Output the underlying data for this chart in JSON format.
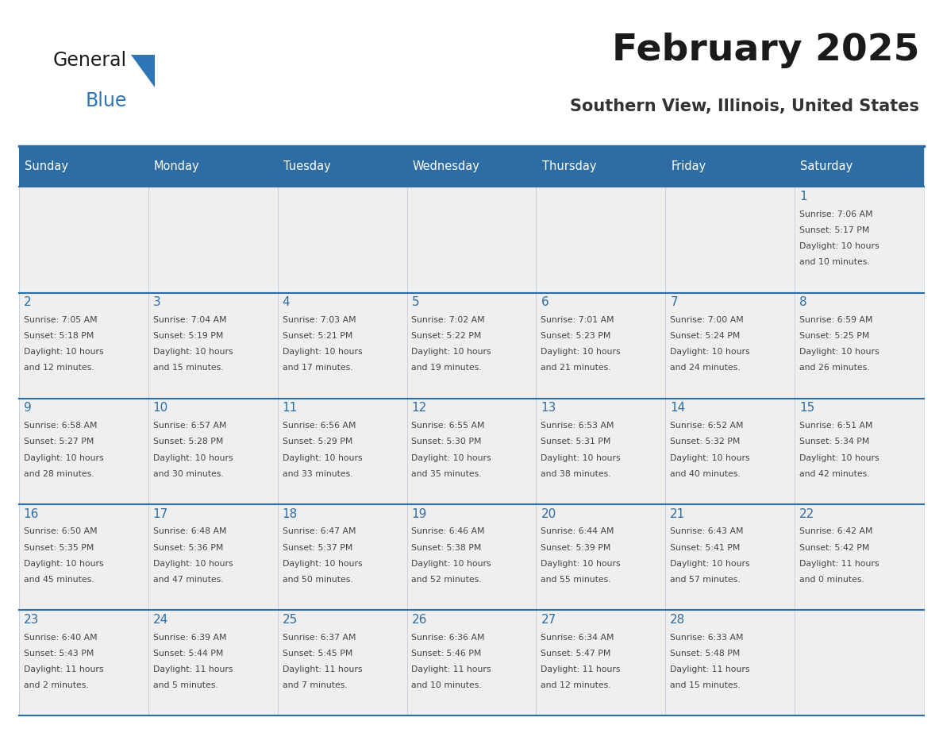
{
  "title": "February 2025",
  "subtitle": "Southern View, Illinois, United States",
  "header_bg": "#2E6DA4",
  "header_text_color": "#FFFFFF",
  "cell_bg": "#EFEFEF",
  "day_number_color": "#2E6DA4",
  "detail_text_color": "#444444",
  "border_color": "#2E6DA4",
  "days_of_week": [
    "Sunday",
    "Monday",
    "Tuesday",
    "Wednesday",
    "Thursday",
    "Friday",
    "Saturday"
  ],
  "weeks": [
    [
      {
        "day": null,
        "sunrise": null,
        "sunset": null,
        "daylight": null
      },
      {
        "day": null,
        "sunrise": null,
        "sunset": null,
        "daylight": null
      },
      {
        "day": null,
        "sunrise": null,
        "sunset": null,
        "daylight": null
      },
      {
        "day": null,
        "sunrise": null,
        "sunset": null,
        "daylight": null
      },
      {
        "day": null,
        "sunrise": null,
        "sunset": null,
        "daylight": null
      },
      {
        "day": null,
        "sunrise": null,
        "sunset": null,
        "daylight": null
      },
      {
        "day": 1,
        "sunrise": "7:06 AM",
        "sunset": "5:17 PM",
        "daylight": "10 hours\nand 10 minutes."
      }
    ],
    [
      {
        "day": 2,
        "sunrise": "7:05 AM",
        "sunset": "5:18 PM",
        "daylight": "10 hours\nand 12 minutes."
      },
      {
        "day": 3,
        "sunrise": "7:04 AM",
        "sunset": "5:19 PM",
        "daylight": "10 hours\nand 15 minutes."
      },
      {
        "day": 4,
        "sunrise": "7:03 AM",
        "sunset": "5:21 PM",
        "daylight": "10 hours\nand 17 minutes."
      },
      {
        "day": 5,
        "sunrise": "7:02 AM",
        "sunset": "5:22 PM",
        "daylight": "10 hours\nand 19 minutes."
      },
      {
        "day": 6,
        "sunrise": "7:01 AM",
        "sunset": "5:23 PM",
        "daylight": "10 hours\nand 21 minutes."
      },
      {
        "day": 7,
        "sunrise": "7:00 AM",
        "sunset": "5:24 PM",
        "daylight": "10 hours\nand 24 minutes."
      },
      {
        "day": 8,
        "sunrise": "6:59 AM",
        "sunset": "5:25 PM",
        "daylight": "10 hours\nand 26 minutes."
      }
    ],
    [
      {
        "day": 9,
        "sunrise": "6:58 AM",
        "sunset": "5:27 PM",
        "daylight": "10 hours\nand 28 minutes."
      },
      {
        "day": 10,
        "sunrise": "6:57 AM",
        "sunset": "5:28 PM",
        "daylight": "10 hours\nand 30 minutes."
      },
      {
        "day": 11,
        "sunrise": "6:56 AM",
        "sunset": "5:29 PM",
        "daylight": "10 hours\nand 33 minutes."
      },
      {
        "day": 12,
        "sunrise": "6:55 AM",
        "sunset": "5:30 PM",
        "daylight": "10 hours\nand 35 minutes."
      },
      {
        "day": 13,
        "sunrise": "6:53 AM",
        "sunset": "5:31 PM",
        "daylight": "10 hours\nand 38 minutes."
      },
      {
        "day": 14,
        "sunrise": "6:52 AM",
        "sunset": "5:32 PM",
        "daylight": "10 hours\nand 40 minutes."
      },
      {
        "day": 15,
        "sunrise": "6:51 AM",
        "sunset": "5:34 PM",
        "daylight": "10 hours\nand 42 minutes."
      }
    ],
    [
      {
        "day": 16,
        "sunrise": "6:50 AM",
        "sunset": "5:35 PM",
        "daylight": "10 hours\nand 45 minutes."
      },
      {
        "day": 17,
        "sunrise": "6:48 AM",
        "sunset": "5:36 PM",
        "daylight": "10 hours\nand 47 minutes."
      },
      {
        "day": 18,
        "sunrise": "6:47 AM",
        "sunset": "5:37 PM",
        "daylight": "10 hours\nand 50 minutes."
      },
      {
        "day": 19,
        "sunrise": "6:46 AM",
        "sunset": "5:38 PM",
        "daylight": "10 hours\nand 52 minutes."
      },
      {
        "day": 20,
        "sunrise": "6:44 AM",
        "sunset": "5:39 PM",
        "daylight": "10 hours\nand 55 minutes."
      },
      {
        "day": 21,
        "sunrise": "6:43 AM",
        "sunset": "5:41 PM",
        "daylight": "10 hours\nand 57 minutes."
      },
      {
        "day": 22,
        "sunrise": "6:42 AM",
        "sunset": "5:42 PM",
        "daylight": "11 hours\nand 0 minutes."
      }
    ],
    [
      {
        "day": 23,
        "sunrise": "6:40 AM",
        "sunset": "5:43 PM",
        "daylight": "11 hours\nand 2 minutes."
      },
      {
        "day": 24,
        "sunrise": "6:39 AM",
        "sunset": "5:44 PM",
        "daylight": "11 hours\nand 5 minutes."
      },
      {
        "day": 25,
        "sunrise": "6:37 AM",
        "sunset": "5:45 PM",
        "daylight": "11 hours\nand 7 minutes."
      },
      {
        "day": 26,
        "sunrise": "6:36 AM",
        "sunset": "5:46 PM",
        "daylight": "11 hours\nand 10 minutes."
      },
      {
        "day": 27,
        "sunrise": "6:34 AM",
        "sunset": "5:47 PM",
        "daylight": "11 hours\nand 12 minutes."
      },
      {
        "day": 28,
        "sunrise": "6:33 AM",
        "sunset": "5:48 PM",
        "daylight": "11 hours\nand 15 minutes."
      },
      {
        "day": null,
        "sunrise": null,
        "sunset": null,
        "daylight": null
      }
    ]
  ],
  "logo_text_general": "General",
  "logo_text_blue": "Blue",
  "logo_color_general": "#1a1a1a",
  "logo_color_blue": "#2E75B6",
  "logo_triangle_color": "#2E75B6",
  "title_color": "#1a1a1a",
  "subtitle_color": "#333333",
  "separator_line_color": "#2E6DA4"
}
